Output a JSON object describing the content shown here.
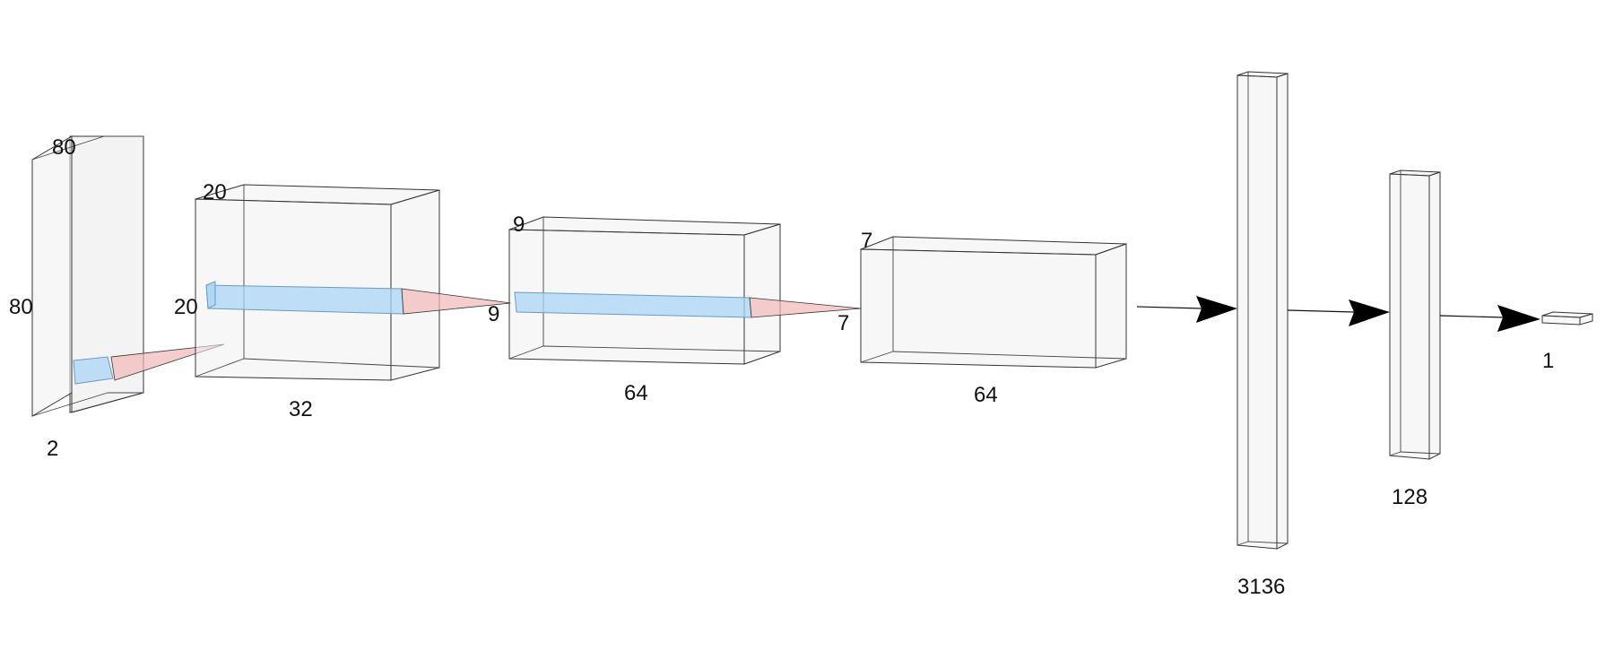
{
  "layers": [
    {
      "name": "input",
      "depth_label": "2",
      "height_label": "80",
      "width_label": "80"
    },
    {
      "name": "conv1",
      "depth_label": "32",
      "height_label": "20",
      "width_label": "20"
    },
    {
      "name": "conv2",
      "depth_label": "64",
      "height_label": "9",
      "width_label": "9"
    },
    {
      "name": "conv3",
      "depth_label": "64",
      "height_label": "7",
      "width_label": "7"
    },
    {
      "name": "flatten",
      "size_label": "3136"
    },
    {
      "name": "dense",
      "size_label": "128"
    },
    {
      "name": "output",
      "size_label": "1"
    }
  ],
  "kernel_labels": {
    "conv1_to_conv2": "9",
    "conv2_to_conv3": "7"
  },
  "colors": {
    "box_fill": "#f1f1f1",
    "kernel_fill": "#a9d5f5",
    "cone_fill": "#f2b8b8",
    "arrow": "#000000"
  }
}
